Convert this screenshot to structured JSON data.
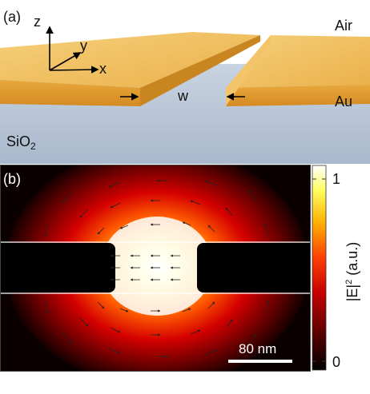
{
  "panel_a": {
    "label": "(a)",
    "axes": {
      "z": "z",
      "y": "y",
      "x": "x"
    },
    "air_label": "Air",
    "au_label": "Au",
    "gap_label": "w",
    "substrate_label_main": "SiO",
    "substrate_label_sub": "2",
    "colors": {
      "substrate": "#b9c6d6",
      "gold_top": "#f2c060",
      "gold_front": "#e09a2c"
    }
  },
  "panel_b": {
    "label": "(b)",
    "scalebar_label": "80 nm",
    "colorbar": {
      "max_label": "1",
      "min_label": "0",
      "title_main": "|E|",
      "title_sup": "2",
      "title_unit": " (a.u.)",
      "colors": [
        "#000000",
        "#5a0000",
        "#c80000",
        "#ff4000",
        "#ffb000",
        "#ffff60",
        "#ffffff"
      ]
    }
  }
}
